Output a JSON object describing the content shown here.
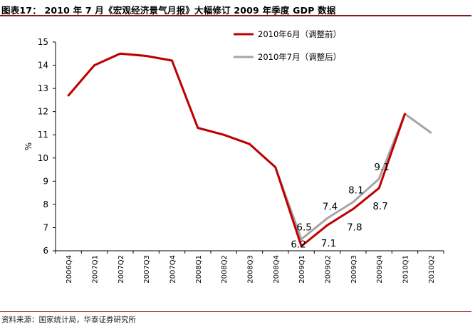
{
  "header": {
    "label": "图表17：",
    "title": "2010 年 7 月《宏观经济景气月报》大幅修订 2009 年季度 GDP 数据"
  },
  "footer": {
    "source": "资料来源：国家统计局，华泰证券研究所"
  },
  "chart_data": {
    "type": "line",
    "title": "2010 年 7 月《宏观经济景气月报》大幅修订 2009 年季度 GDP 数据",
    "xlabel": "",
    "ylabel": "%",
    "categories": [
      "2006Q4",
      "2007Q1",
      "2007Q2",
      "2007Q3",
      "2007Q4",
      "2008Q1",
      "2008Q2",
      "2008Q3",
      "2008Q4",
      "2009Q1",
      "2009Q2",
      "2009Q3",
      "2009Q4",
      "2010Q1",
      "2010Q2"
    ],
    "ylim": [
      6,
      15
    ],
    "yticks": [
      6,
      7,
      8,
      9,
      10,
      11,
      12,
      13,
      14,
      15
    ],
    "grid": false,
    "legend_position": "top-right",
    "series": [
      {
        "name": "2010年6月（调整前）",
        "color": "#c00000",
        "values": [
          12.7,
          14.0,
          14.5,
          14.4,
          14.2,
          11.3,
          11.0,
          10.6,
          9.6,
          6.2,
          7.1,
          7.8,
          8.7,
          11.9,
          null
        ],
        "data_labels": [
          null,
          null,
          null,
          null,
          null,
          null,
          null,
          null,
          null,
          "6.2",
          "7.1",
          "7.8",
          "8.7",
          null,
          null
        ]
      },
      {
        "name": "2010年7月（调整后）",
        "color": "#a6a6a6",
        "values": [
          12.7,
          14.0,
          14.5,
          14.4,
          14.2,
          11.3,
          11.0,
          10.6,
          9.6,
          6.5,
          7.4,
          8.1,
          9.1,
          11.9,
          11.1
        ],
        "data_labels": [
          null,
          null,
          null,
          null,
          null,
          null,
          null,
          null,
          null,
          "6.5",
          "7.4",
          "8.1",
          "9.1",
          null,
          null
        ]
      }
    ]
  }
}
